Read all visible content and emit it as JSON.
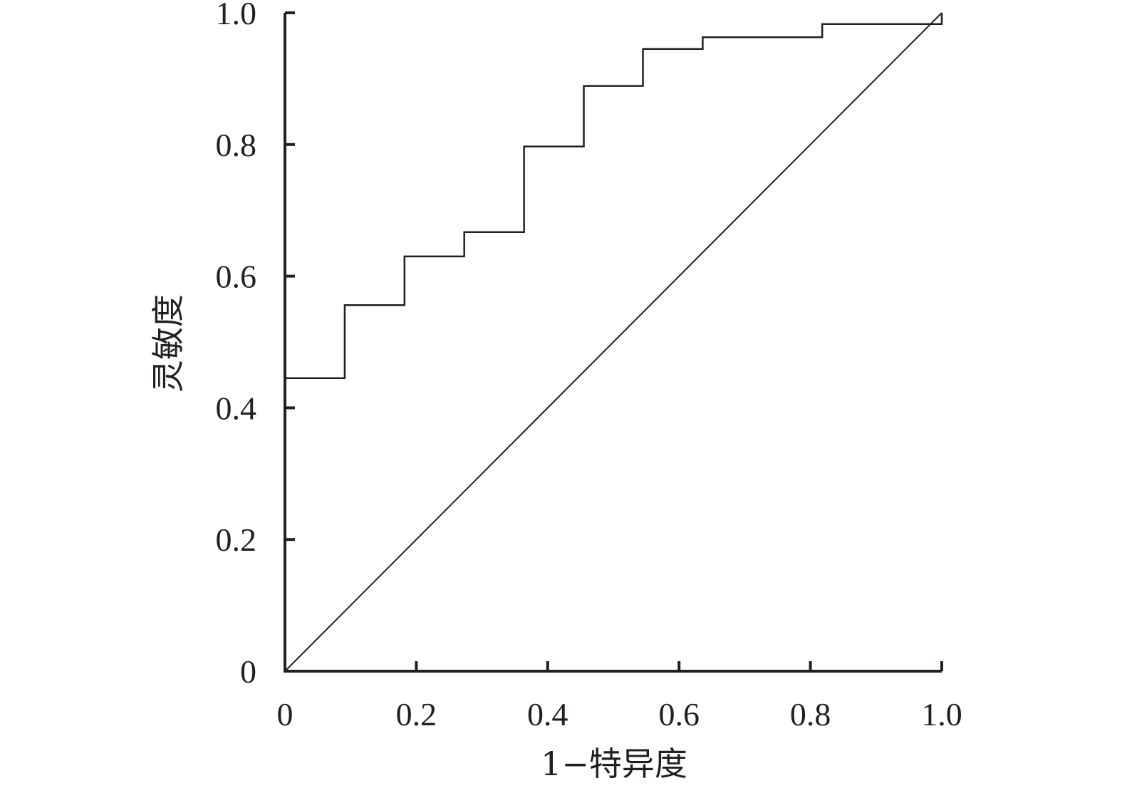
{
  "chart_data": {
    "type": "line",
    "xlabel": "1−特异度",
    "ylabel": "灵敏度",
    "xlim": [
      0,
      1
    ],
    "ylim": [
      0,
      1
    ],
    "x_ticks": [
      0,
      0.2,
      0.4,
      0.6,
      0.8,
      1.0
    ],
    "x_tick_labels": [
      "0",
      "0.2",
      "0.4",
      "0.6",
      "0.8",
      "1.0"
    ],
    "y_ticks": [
      0,
      0.2,
      0.4,
      0.6,
      0.8,
      1.0
    ],
    "y_tick_labels": [
      "0",
      "0.2",
      "0.4",
      "0.6",
      "0.8",
      "1.0"
    ],
    "grid": false,
    "series": [
      {
        "style": "step",
        "points": [
          [
            0,
            0
          ],
          [
            0,
            0.445
          ],
          [
            0.091,
            0.445
          ],
          [
            0.091,
            0.556
          ],
          [
            0.182,
            0.556
          ],
          [
            0.182,
            0.63
          ],
          [
            0.273,
            0.63
          ],
          [
            0.273,
            0.667
          ],
          [
            0.364,
            0.667
          ],
          [
            0.364,
            0.797
          ],
          [
            0.455,
            0.797
          ],
          [
            0.455,
            0.889
          ],
          [
            0.545,
            0.889
          ],
          [
            0.545,
            0.945
          ],
          [
            0.636,
            0.945
          ],
          [
            0.636,
            0.963
          ],
          [
            0.818,
            0.963
          ],
          [
            0.818,
            0.983
          ],
          [
            1.0,
            0.983
          ],
          [
            1.0,
            1.0
          ]
        ]
      },
      {
        "style": "reference",
        "points": [
          [
            0,
            0
          ],
          [
            1.0,
            1.0
          ]
        ]
      }
    ],
    "colors": {
      "line": "#231f20",
      "axis": "#231f20"
    }
  }
}
